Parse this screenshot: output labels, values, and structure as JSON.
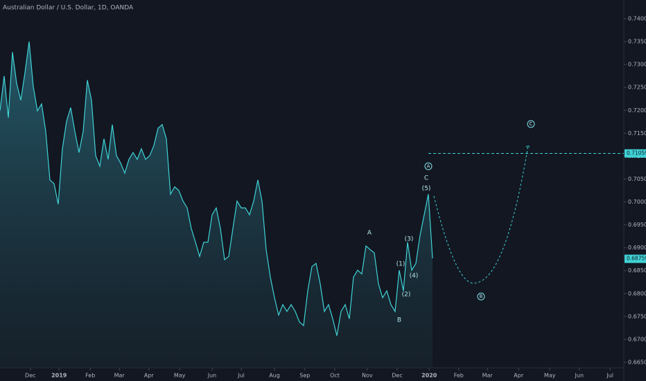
{
  "chart_data": {
    "type": "area",
    "title": "Australian Dollar / U.S. Dollar, 1D, OANDA",
    "color": "#3fd3d6",
    "values": [
      0.7199,
      0.7275,
      0.7184,
      0.7327,
      0.7259,
      0.7222,
      0.7282,
      0.735,
      0.7252,
      0.7199,
      0.7214,
      0.7154,
      0.7048,
      0.704,
      0.6995,
      0.7116,
      0.7176,
      0.7206,
      0.7154,
      0.7108,
      0.7154,
      0.7266,
      0.7222,
      0.7101,
      0.7078,
      0.7138,
      0.7093,
      0.7169,
      0.7101,
      0.7085,
      0.7063,
      0.7093,
      0.7108,
      0.7093,
      0.7116,
      0.7093,
      0.7101,
      0.7123,
      0.7161,
      0.7169,
      0.7138,
      0.7017,
      0.7033,
      0.7025,
      0.7002,
      0.6987,
      0.6942,
      0.6912,
      0.6881,
      0.6912,
      0.6912,
      0.6972,
      0.6987,
      0.6942,
      0.6874,
      0.6881,
      0.6942,
      0.7002,
      0.6987,
      0.6987,
      0.6972,
      0.7002,
      0.7048,
      0.7002,
      0.6896,
      0.6836,
      0.6791,
      0.6753,
      0.6776,
      0.6761,
      0.6776,
      0.6761,
      0.6738,
      0.673,
      0.6806,
      0.6859,
      0.6866,
      0.6821,
      0.6761,
      0.6776,
      0.6745,
      0.6708,
      0.6761,
      0.6776,
      0.6745,
      0.6836,
      0.6851,
      0.6843,
      0.6904,
      0.6896,
      0.6889,
      0.6821,
      0.6791,
      0.6806,
      0.6776,
      0.6761,
      0.6851,
      0.6806,
      0.6912,
      0.6851,
      0.6866,
      0.6927,
      0.6972,
      0.7017,
      0.6877
    ],
    "xlim": [
      0,
      150
    ],
    "xticks": [
      {
        "value": 7.3,
        "label": "Dec"
      },
      {
        "value": 14.2,
        "label": "2019"
      },
      {
        "value": 21.7,
        "label": "Feb"
      },
      {
        "value": 28.7,
        "label": "Mar"
      },
      {
        "value": 35.8,
        "label": "Apr"
      },
      {
        "value": 43.2,
        "label": "May"
      },
      {
        "value": 51,
        "label": "Jun"
      },
      {
        "value": 58,
        "label": "Jul"
      },
      {
        "value": 66,
        "label": "Aug"
      },
      {
        "value": 73.3,
        "label": "Sep"
      },
      {
        "value": 80.5,
        "label": "Oct"
      },
      {
        "value": 88.3,
        "label": "Nov"
      },
      {
        "value": 95.5,
        "label": "Dec"
      },
      {
        "value": 103.2,
        "label": "2020"
      },
      {
        "value": 110.3,
        "label": "Feb"
      },
      {
        "value": 117.2,
        "label": "Mar"
      },
      {
        "value": 124.7,
        "label": "Apr"
      },
      {
        "value": 132.2,
        "label": "May"
      },
      {
        "value": 139.3,
        "label": "Jun"
      },
      {
        "value": 146.7,
        "label": "Jul"
      }
    ],
    "ylim": [
      0.665,
      0.74
    ],
    "yticks": [
      {
        "value": 0.665,
        "label": "0.66500"
      },
      {
        "value": 0.67,
        "label": "0.67000"
      },
      {
        "value": 0.675,
        "label": "0.67500"
      },
      {
        "value": 0.68,
        "label": "0.68000"
      },
      {
        "value": 0.685,
        "label": "0.68500"
      },
      {
        "value": 0.69,
        "label": "0.69000"
      },
      {
        "value": 0.695,
        "label": "0.69500"
      },
      {
        "value": 0.7,
        "label": "0.70000"
      },
      {
        "value": 0.705,
        "label": "0.70500"
      },
      {
        "value": 0.71,
        "label": "0.71000"
      },
      {
        "value": 0.715,
        "label": "0.71500"
      },
      {
        "value": 0.72,
        "label": "0.72000"
      },
      {
        "value": 0.725,
        "label": "0.72500"
      },
      {
        "value": 0.73,
        "label": "0.73000"
      },
      {
        "value": 0.735,
        "label": "0.73500"
      },
      {
        "value": 0.74,
        "label": "0.74000"
      }
    ],
    "target_price": 0.71059,
    "last_price": 0.68759,
    "annotations": [
      "A",
      "B",
      "C",
      "(1)",
      "(2)",
      "(3)",
      "(4)",
      "(5)",
      "A",
      "B",
      "C"
    ]
  }
}
